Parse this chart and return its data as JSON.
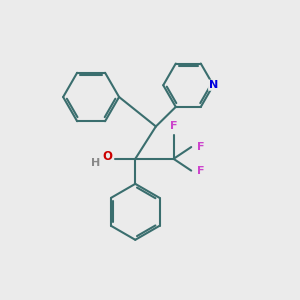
{
  "bg_color": "#ebebeb",
  "bond_color": "#3a6e6e",
  "N_color": "#0000dd",
  "O_color": "#cc0000",
  "F_color": "#cc44cc",
  "H_color": "#888888",
  "line_width": 1.5,
  "figsize": [
    3.0,
    3.0
  ],
  "dpi": 100,
  "xlim": [
    0,
    10
  ],
  "ylim": [
    0,
    10
  ]
}
